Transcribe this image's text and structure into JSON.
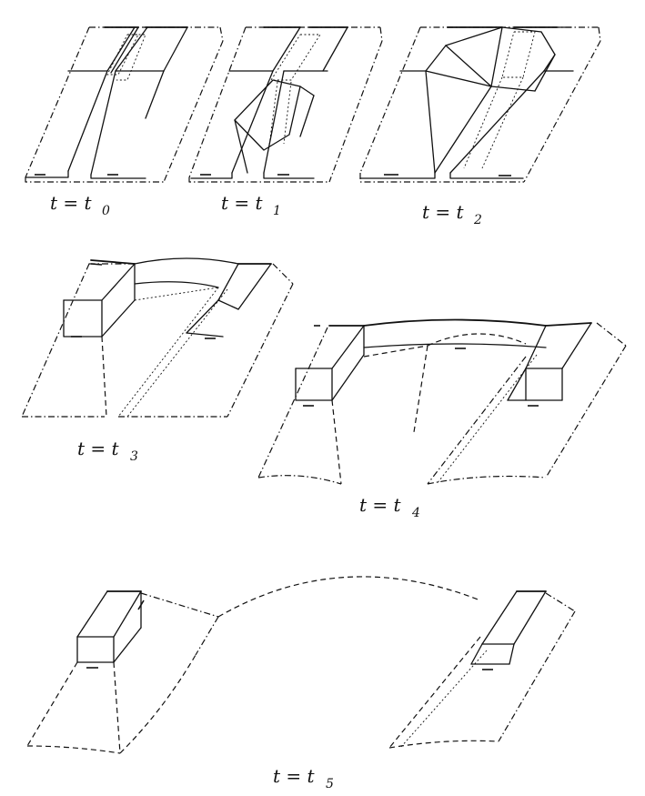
{
  "panels": [
    {
      "id": "t0",
      "label_lhs": "t",
      "label_eq": "=",
      "label_var": "t",
      "label_sub": "0"
    },
    {
      "id": "t1",
      "label_lhs": "t",
      "label_eq": "=",
      "label_var": "t",
      "label_sub": "1"
    },
    {
      "id": "t2",
      "label_lhs": "t",
      "label_eq": "=",
      "label_var": "t",
      "label_sub": "2"
    },
    {
      "id": "t3",
      "label_lhs": "t",
      "label_eq": "=",
      "label_var": "t",
      "label_sub": "3"
    },
    {
      "id": "t4",
      "label_lhs": "t",
      "label_eq": "=",
      "label_var": "t",
      "label_sub": "4"
    },
    {
      "id": "t5",
      "label_lhs": "t",
      "label_eq": "=",
      "label_var": "t",
      "label_sub": "5"
    }
  ]
}
